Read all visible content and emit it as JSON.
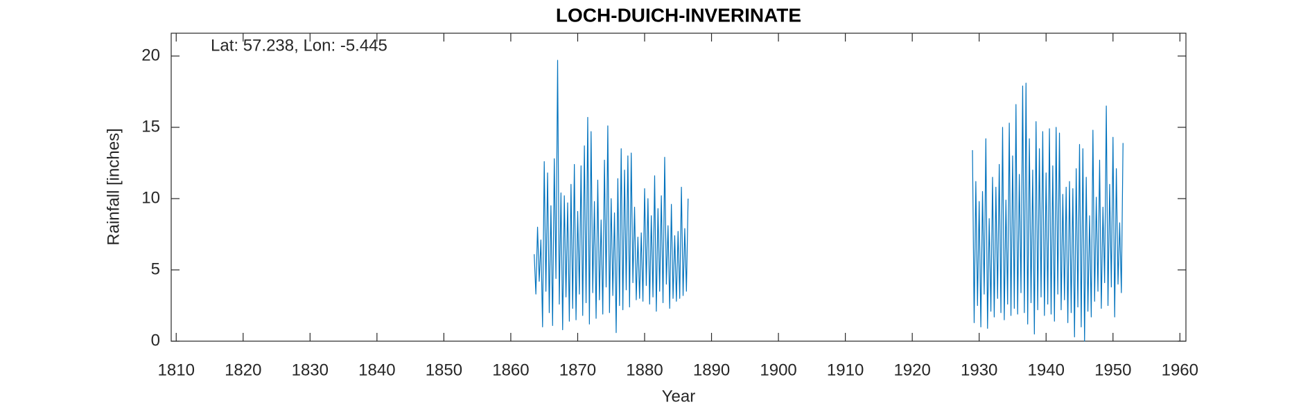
{
  "chart_data": {
    "type": "line",
    "title": "LOCH-DUICH-INVERINATE",
    "annotation": "Lat: 57.238, Lon: -5.445",
    "xlabel": "Year",
    "ylabel": "Rainfall [inches]",
    "xlim": [
      1809.25,
      1960.9
    ],
    "ylim": [
      0,
      21.6
    ],
    "xticks": [
      1810,
      1820,
      1830,
      1840,
      1850,
      1860,
      1870,
      1880,
      1890,
      1900,
      1910,
      1920,
      1930,
      1940,
      1950,
      1960
    ],
    "yticks": [
      0,
      5,
      10,
      15,
      20
    ],
    "grid": false,
    "series": [
      {
        "color": "#0072bd",
        "x": [
          1863.5,
          1863.75,
          1864,
          1864.25,
          1864.5,
          1864.75,
          1865,
          1865.25,
          1865.5,
          1865.75,
          1866,
          1866.25,
          1866.5,
          1866.75,
          1867,
          1867.25,
          1867.5,
          1867.75,
          1868,
          1868.25,
          1868.5,
          1868.75,
          1869,
          1869.25,
          1869.5,
          1869.75,
          1870,
          1870.25,
          1870.5,
          1870.75,
          1871,
          1871.25,
          1871.5,
          1871.75,
          1872,
          1872.25,
          1872.5,
          1872.75,
          1873,
          1873.25,
          1873.5,
          1873.75,
          1874,
          1874.25,
          1874.5,
          1874.75,
          1875,
          1875.25,
          1875.5,
          1875.75,
          1876,
          1876.25,
          1876.5,
          1876.75,
          1877,
          1877.25,
          1877.5,
          1877.75,
          1878,
          1878.25,
          1878.5,
          1878.75,
          1879,
          1879.25,
          1879.5,
          1879.75,
          1880,
          1880.25,
          1880.5,
          1880.75,
          1881,
          1881.25,
          1881.5,
          1881.75,
          1882,
          1882.25,
          1882.5,
          1882.75,
          1883,
          1883.25,
          1883.5,
          1883.75,
          1884,
          1884.25,
          1884.5,
          1884.75,
          1885,
          1885.25,
          1885.5,
          1885.75,
          1886,
          1886.25,
          1886.5
        ],
        "values": [
          6.1,
          3.3,
          8.0,
          4.2,
          7.1,
          1.0,
          12.6,
          3.5,
          11.8,
          2.0,
          9.5,
          1.1,
          12.8,
          4.4,
          19.7,
          2.6,
          10.4,
          0.8,
          10.2,
          3.1,
          9.7,
          1.4,
          11.0,
          2.3,
          12.4,
          1.5,
          9.1,
          3.3,
          12.3,
          1.8,
          13.7,
          2.7,
          15.7,
          1.2,
          14.7,
          3.4,
          9.8,
          1.6,
          11.3,
          2.9,
          8.5,
          1.9,
          12.7,
          3.8,
          15.1,
          2.0,
          10.0,
          3.2,
          9.0,
          0.6,
          11.4,
          2.5,
          13.5,
          2.2,
          12.0,
          3.6,
          13.0,
          2.4,
          13.2,
          4.1,
          9.4,
          2.9,
          7.3,
          3.0,
          7.6,
          2.8,
          10.7,
          3.9,
          10.0,
          2.6,
          8.8,
          3.1,
          11.6,
          2.1,
          9.3,
          3.5,
          10.2,
          2.7,
          12.9,
          4.0,
          8.1,
          2.3,
          9.6,
          3.0,
          7.4,
          2.8,
          7.7,
          3.0,
          10.8,
          3.2,
          7.9,
          3.5,
          10.0
        ]
      },
      {
        "color": "#0072bd",
        "x": [
          1929,
          1929.25,
          1929.5,
          1929.75,
          1930,
          1930.25,
          1930.5,
          1930.75,
          1931,
          1931.25,
          1931.5,
          1931.75,
          1932,
          1932.25,
          1932.5,
          1932.75,
          1933,
          1933.25,
          1933.5,
          1933.75,
          1934,
          1934.25,
          1934.5,
          1934.75,
          1935,
          1935.25,
          1935.5,
          1935.75,
          1936,
          1936.25,
          1936.5,
          1936.75,
          1937,
          1937.25,
          1937.5,
          1937.75,
          1938,
          1938.25,
          1938.5,
          1938.75,
          1939,
          1939.25,
          1939.5,
          1939.75,
          1940,
          1940.25,
          1940.5,
          1940.75,
          1941,
          1941.25,
          1941.5,
          1941.75,
          1942,
          1942.25,
          1942.5,
          1942.75,
          1943,
          1943.25,
          1943.5,
          1943.75,
          1944,
          1944.25,
          1944.5,
          1944.75,
          1945,
          1945.25,
          1945.5,
          1945.75,
          1946,
          1946.25,
          1946.5,
          1946.75,
          1947,
          1947.25,
          1947.5,
          1947.75,
          1948,
          1948.25,
          1948.5,
          1948.75,
          1949,
          1949.25,
          1949.5,
          1949.75,
          1950,
          1950.25,
          1950.5,
          1950.75,
          1951,
          1951.25,
          1951.5
        ],
        "values": [
          13.4,
          1.3,
          11.2,
          2.5,
          9.8,
          1.0,
          10.5,
          3.3,
          14.2,
          0.9,
          8.6,
          2.1,
          11.5,
          1.7,
          10.8,
          3.0,
          12.4,
          2.0,
          15.0,
          1.5,
          9.9,
          2.6,
          15.3,
          1.8,
          13.0,
          2.3,
          16.6,
          1.9,
          11.7,
          3.4,
          17.9,
          2.0,
          18.1,
          1.2,
          14.2,
          2.7,
          12.0,
          0.5,
          15.4,
          2.2,
          13.5,
          3.1,
          14.7,
          1.8,
          11.8,
          2.6,
          14.9,
          1.9,
          12.3,
          1.4,
          15.0,
          3.3,
          14.6,
          2.2,
          10.3,
          2.9,
          10.8,
          1.3,
          11.2,
          2.0,
          10.7,
          0.3,
          12.1,
          2.4,
          13.8,
          1.0,
          13.5,
          0.0,
          11.5,
          2.1,
          8.8,
          1.7,
          14.8,
          2.8,
          10.1,
          3.5,
          12.7,
          2.3,
          9.4,
          4.1,
          16.5,
          2.5,
          11.0,
          3.8,
          14.3,
          1.7,
          12.1,
          4.0,
          8.3,
          3.4,
          13.9
        ]
      }
    ]
  }
}
